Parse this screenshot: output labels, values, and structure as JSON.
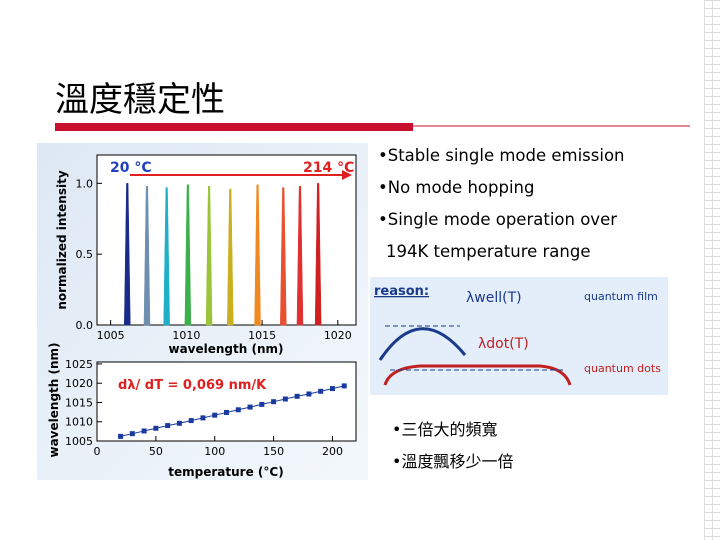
{
  "title": "溫度穩定性",
  "bullets": [
    {
      "lines": [
        "Stable single mode emission"
      ]
    },
    {
      "lines": [
        "No mode hopping"
      ]
    },
    {
      "lines": [
        "Single mode operation over",
        "194K temperature range"
      ]
    }
  ],
  "spectrum": {
    "type": "spectrum",
    "xlabel": "wavelength (nm)",
    "ylabel": "normalized intensity",
    "start_label": "20 °C",
    "end_label": "214 °C",
    "xlim": [
      1004.1,
      1021.2
    ],
    "xticks": [
      1005,
      1010,
      1015,
      1020
    ],
    "ylim": [
      0,
      1.2
    ],
    "yticks": [
      {
        "value": 0,
        "label": "0.0"
      },
      {
        "value": 0.5,
        "label": "0.5"
      },
      {
        "value": 1,
        "label": "1.0"
      }
    ],
    "peaks_x": [
      1006.1,
      1007.4,
      1008.7,
      1010.1,
      1011.5,
      1012.9,
      1014.7,
      1016.4,
      1017.5,
      1018.7
    ],
    "peaks_height": [
      1.0,
      0.98,
      0.97,
      0.99,
      0.98,
      0.96,
      0.99,
      0.97,
      0.98,
      1.0
    ],
    "colors": [
      "#1a2a8a",
      "#6f8fb0",
      "#1fb0c8",
      "#3cb04a",
      "#9ac43a",
      "#c8b020",
      "#f08a20",
      "#e85030",
      "#e03030",
      "#d02020"
    ]
  },
  "shift": {
    "type": "scatter",
    "xlabel": "temperature (°C)",
    "ylabel": "wavelength (nm)",
    "annotation": "dλ/ dT = 0,069 nm/K",
    "xlim": [
      0,
      220
    ],
    "xticks": [
      0,
      50,
      100,
      150,
      200
    ],
    "ylim": [
      1005,
      1025.5
    ],
    "yticks": [
      1005,
      1010,
      1015,
      1020,
      1025
    ],
    "color": "#1a3aa0",
    "x": [
      20,
      30,
      40,
      50,
      60,
      70,
      80,
      90,
      100,
      110,
      120,
      130,
      140,
      150,
      160,
      170,
      180,
      190,
      200,
      210
    ],
    "values": [
      1006.2,
      1006.9,
      1007.6,
      1008.3,
      1009.0,
      1009.6,
      1010.3,
      1011.0,
      1011.7,
      1012.4,
      1013.1,
      1013.8,
      1014.5,
      1015.2,
      1015.9,
      1016.6,
      1017.2,
      1017.9,
      1018.6,
      1019.3
    ]
  },
  "reason": {
    "label": "reason:",
    "well": "λwell(T)",
    "film": "quantum film",
    "dot": "λdot(T)",
    "dots": "quantum dots"
  },
  "notes": [
    "三倍大的頻寬",
    "溫度飄移少一倍"
  ]
}
